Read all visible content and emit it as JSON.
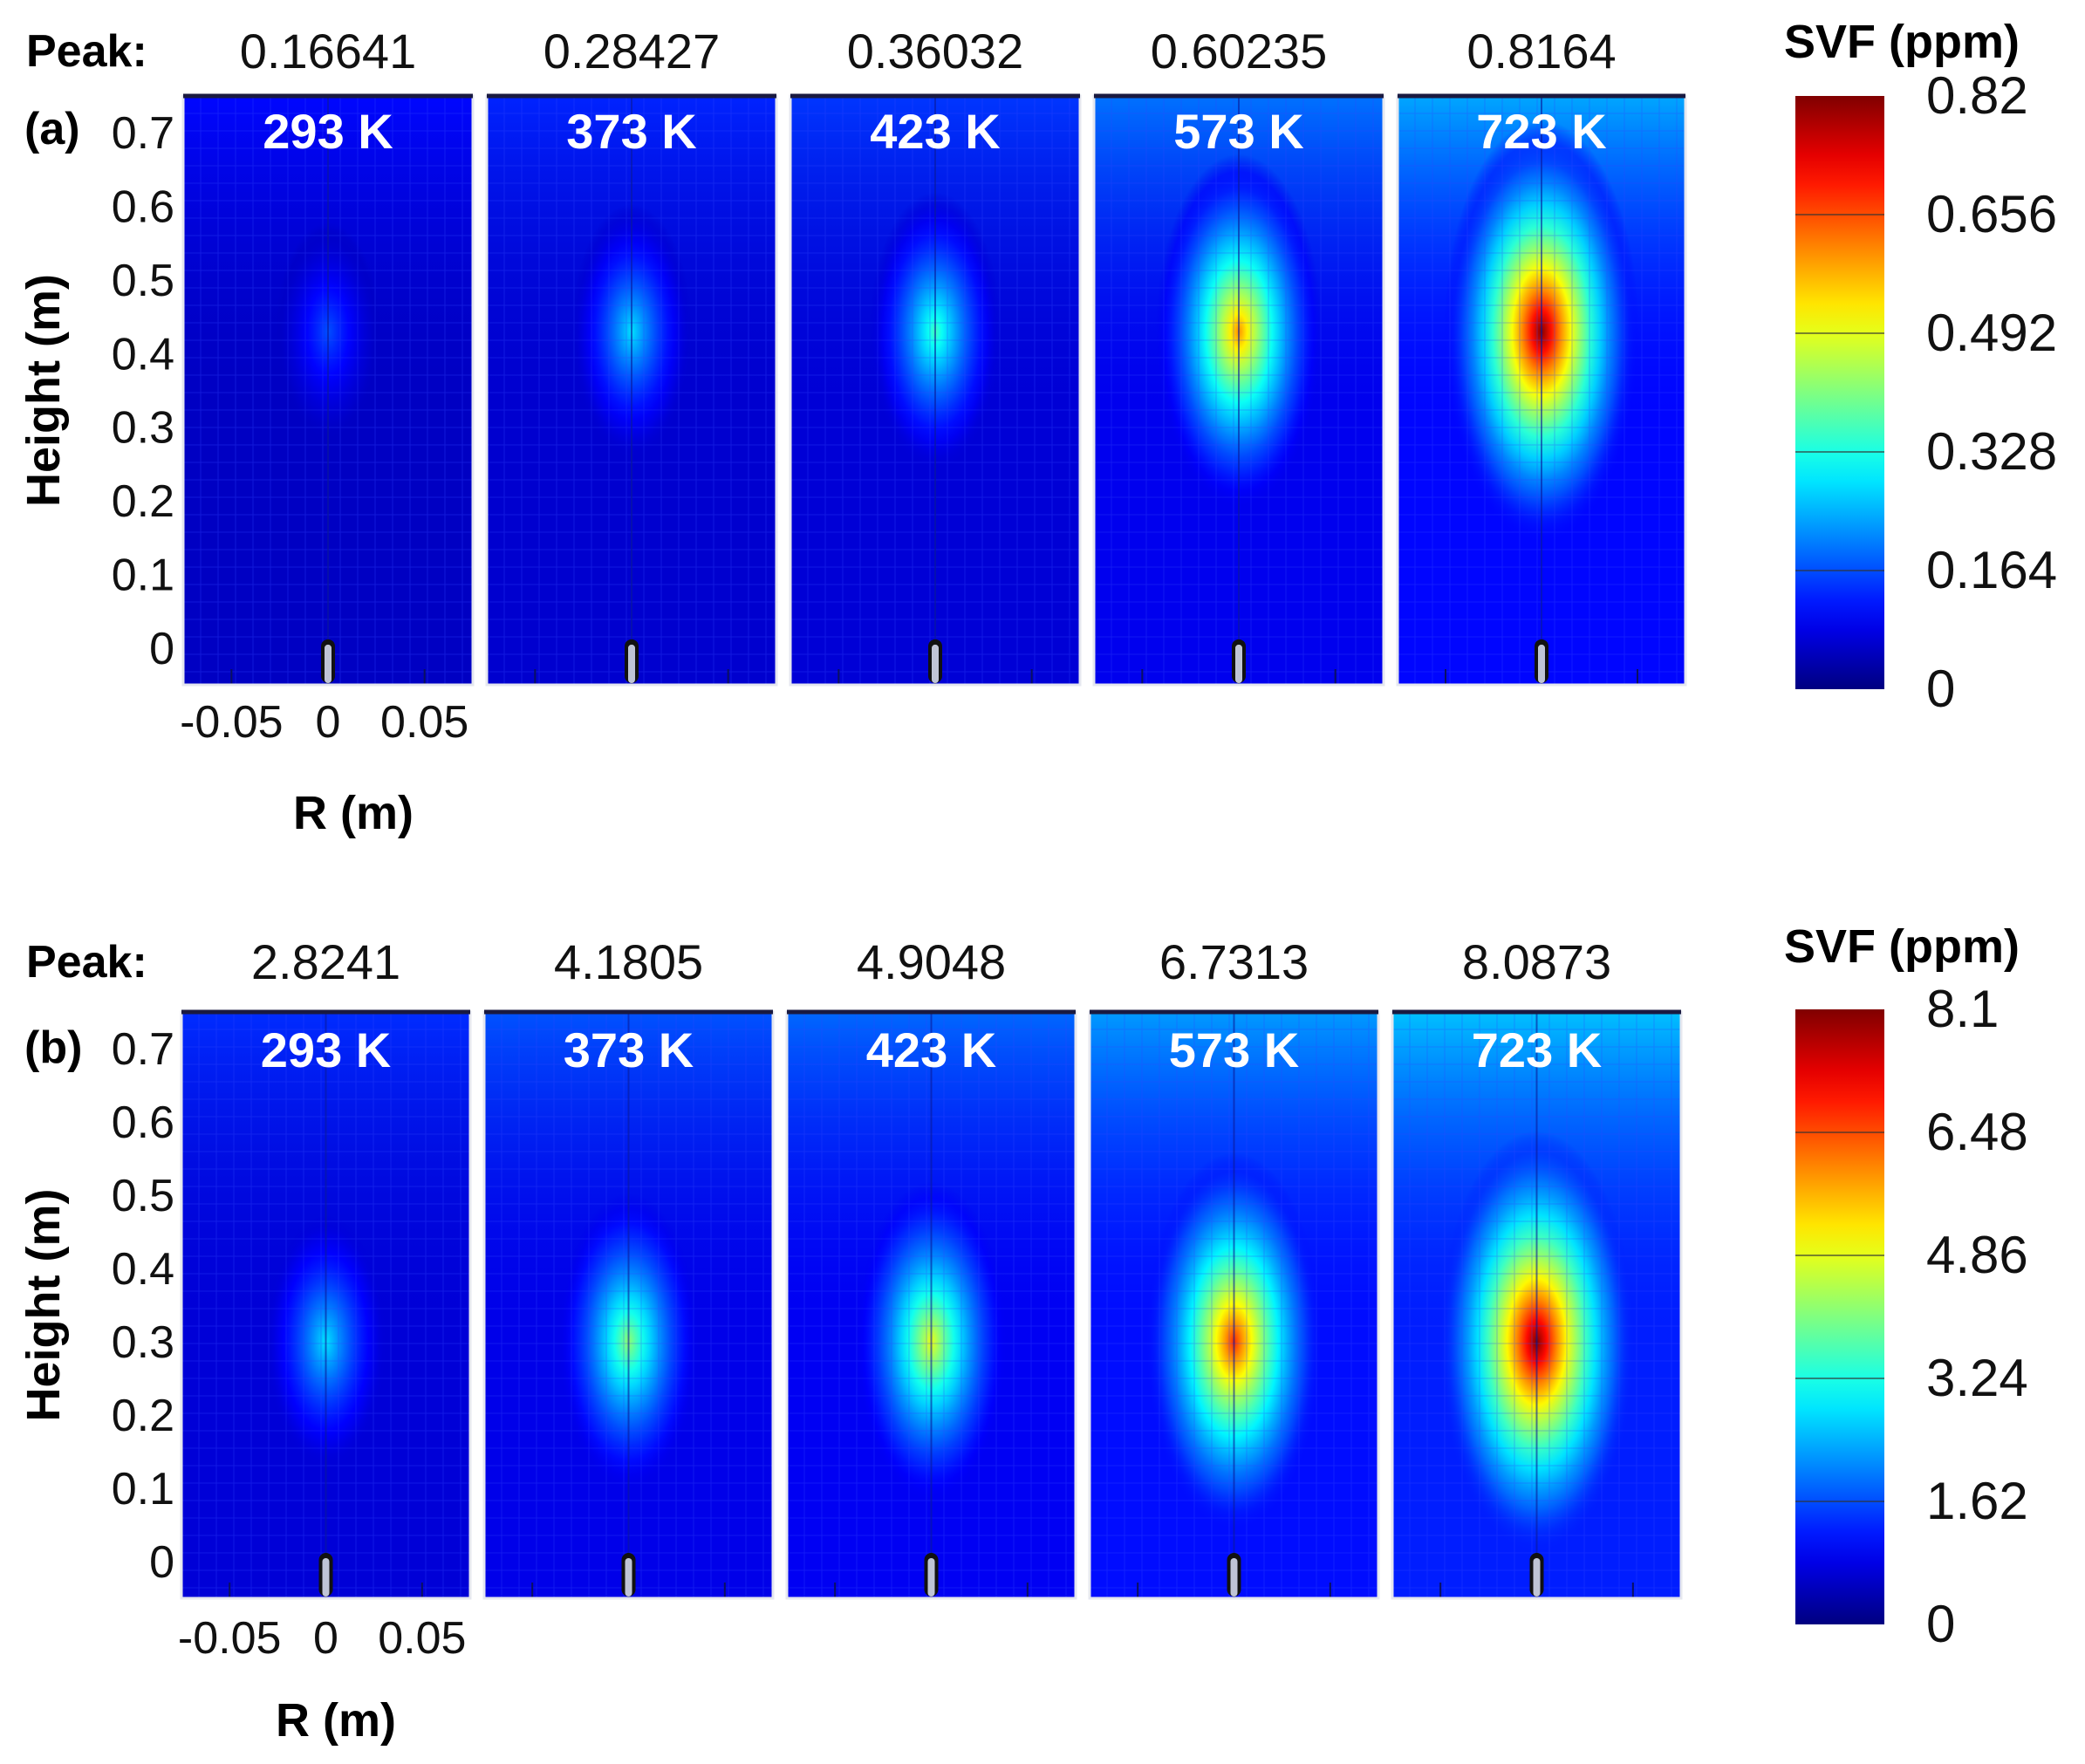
{
  "chart_data": [
    {
      "type": "heatmap",
      "panel_label": "(a)",
      "peak_label": "Peak:",
      "peaks": [
        "0.16641",
        "0.28427",
        "0.36032",
        "0.60235",
        "0.8164"
      ],
      "temperatures": [
        "293 K",
        "373 K",
        "423 K",
        "573 K",
        "723 K"
      ],
      "peak_values": [
        0.16641,
        0.28427,
        0.36032,
        0.60235,
        0.8164
      ],
      "peak_height_m": 0.43,
      "ylabel": "Height (m)",
      "xlabel": "R (m)",
      "yticks": [
        "0",
        "0.1",
        "0.2",
        "0.3",
        "0.4",
        "0.5",
        "0.6",
        "0.7"
      ],
      "ytick_values": [
        0,
        0.1,
        0.2,
        0.3,
        0.4,
        0.5,
        0.6,
        0.7
      ],
      "xticks": [
        "-0.05",
        "0",
        "0.05"
      ],
      "xtick_values": [
        -0.05,
        0,
        0.05
      ],
      "xlim": [
        -0.075,
        0.075
      ],
      "ylim": [
        -0.05,
        0.75
      ],
      "colorbar": {
        "title": "SVF (ppm)",
        "ticks": [
          "0",
          "0.164",
          "0.328",
          "0.492",
          "0.656",
          "0.82"
        ],
        "tick_values": [
          0,
          0.164,
          0.328,
          0.492,
          0.656,
          0.82
        ],
        "range": [
          0,
          0.82
        ]
      }
    },
    {
      "type": "heatmap",
      "panel_label": "(b)",
      "peak_label": "Peak:",
      "peaks": [
        "2.8241",
        "4.1805",
        "4.9048",
        "6.7313",
        "8.0873"
      ],
      "temperatures": [
        "293 K",
        "373 K",
        "423 K",
        "573 K",
        "723 K"
      ],
      "peak_values": [
        2.8241,
        4.1805,
        4.9048,
        6.7313,
        8.0873
      ],
      "peak_height_m": 0.3,
      "ylabel": "Height (m)",
      "xlabel": "R (m)",
      "yticks": [
        "0",
        "0.1",
        "0.2",
        "0.3",
        "0.4",
        "0.5",
        "0.6",
        "0.7"
      ],
      "ytick_values": [
        0,
        0.1,
        0.2,
        0.3,
        0.4,
        0.5,
        0.6,
        0.7
      ],
      "xticks": [
        "-0.05",
        "0",
        "0.05"
      ],
      "xtick_values": [
        -0.05,
        0,
        0.05
      ],
      "xlim": [
        -0.075,
        0.075
      ],
      "ylim": [
        -0.05,
        0.75
      ],
      "colorbar": {
        "title": "SVF (ppm)",
        "ticks": [
          "0",
          "1.62",
          "3.24",
          "4.86",
          "6.48",
          "8.1"
        ],
        "tick_values": [
          0,
          1.62,
          3.24,
          4.86,
          6.48,
          8.1
        ],
        "range": [
          0,
          8.1
        ]
      }
    }
  ],
  "colors": {
    "background_low": "#1a2cf0",
    "grid_line": "#2b3ff5",
    "nozzle": "#111111"
  }
}
